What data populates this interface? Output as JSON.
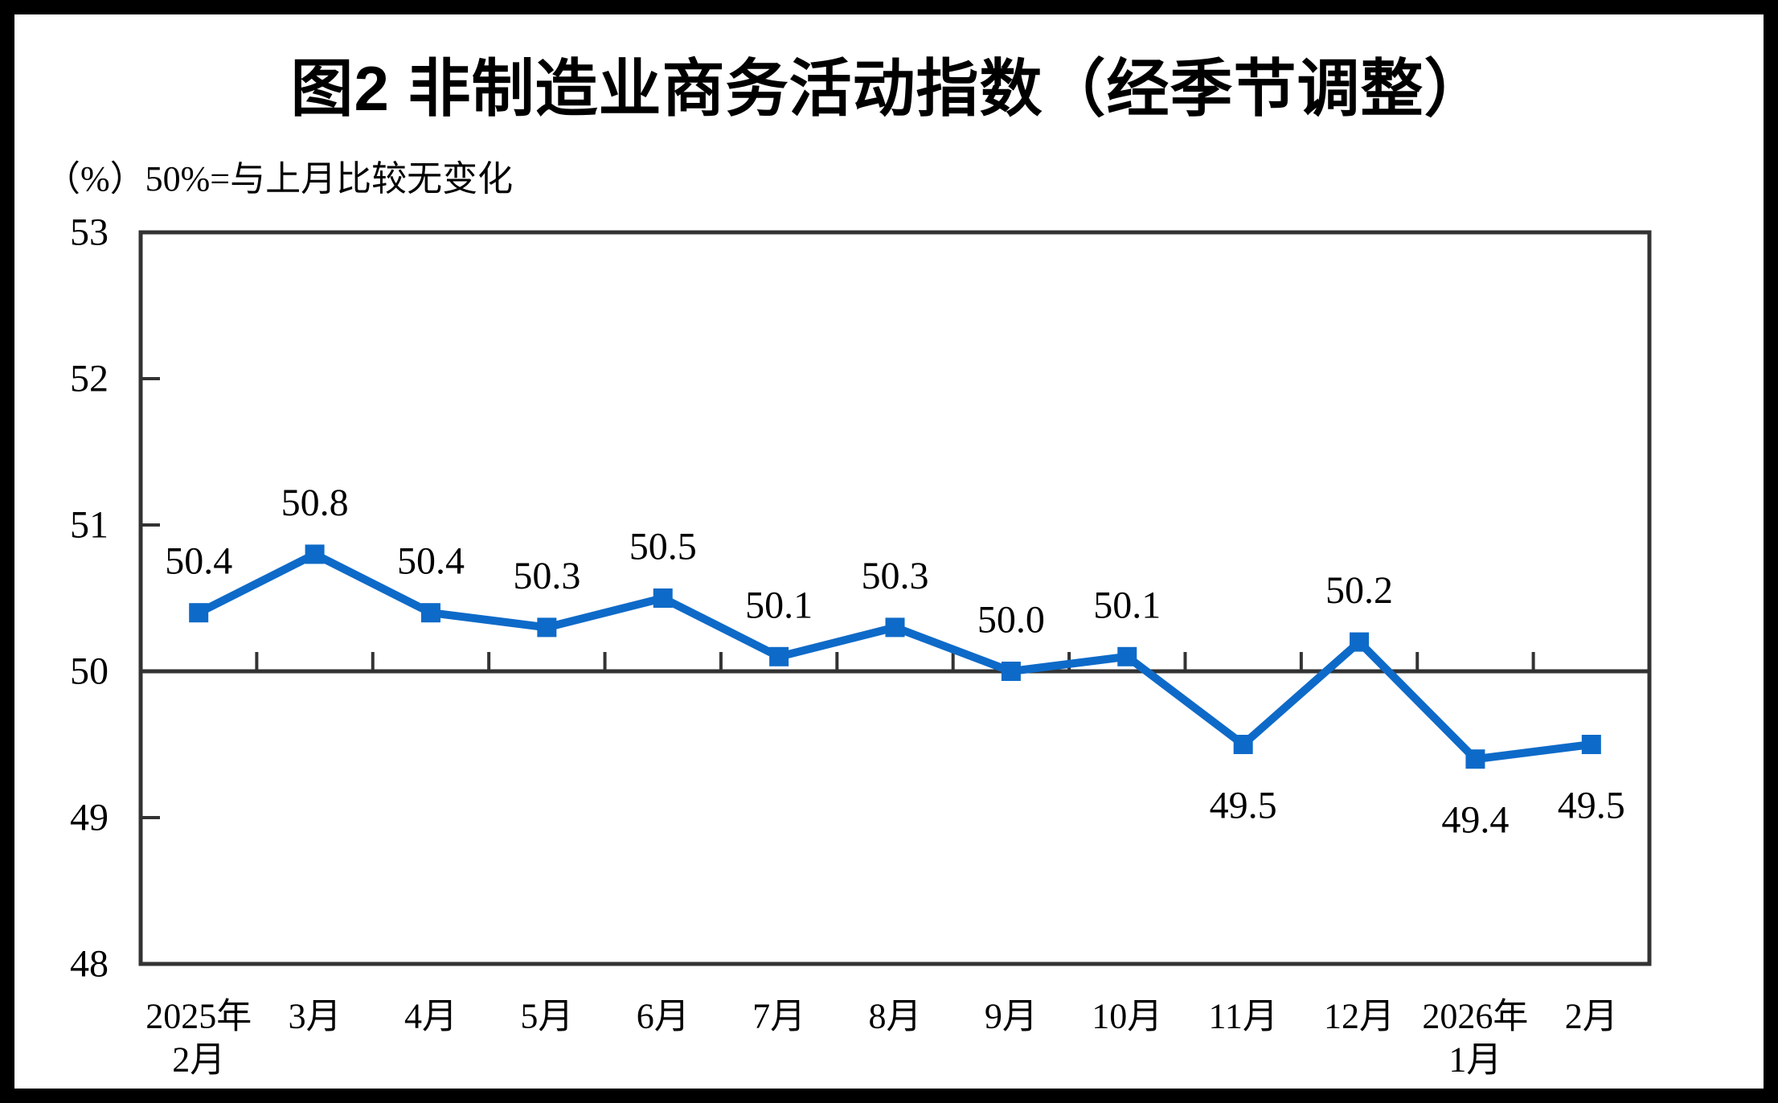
{
  "chart_data": {
    "type": "line",
    "title": "图2 非制造业商务活动指数（经季节调整）",
    "unit_note": "（%）50%=与上月比较无变化",
    "categories": [
      "2025年\n2月",
      "3月",
      "4月",
      "5月",
      "6月",
      "7月",
      "8月",
      "9月",
      "10月",
      "11月",
      "12月",
      "2026年\n1月",
      "2月"
    ],
    "values": [
      50.4,
      50.8,
      50.4,
      50.3,
      50.5,
      50.1,
      50.3,
      50.0,
      50.1,
      49.5,
      50.2,
      49.4,
      49.5
    ],
    "data_labels": [
      "50.4",
      "50.8",
      "50.4",
      "50.3",
      "50.5",
      "50.1",
      "50.3",
      "50.0",
      "50.1",
      "49.5",
      "50.2",
      "49.4",
      "49.5"
    ],
    "label_positions": [
      "above",
      "above",
      "above",
      "above",
      "above",
      "above",
      "above",
      "above",
      "above",
      "below",
      "above",
      "below",
      "below"
    ],
    "ylim": [
      48,
      53
    ],
    "yticks": [
      48,
      49,
      50,
      51,
      52,
      53
    ],
    "reference_line_value": 50,
    "grid": false,
    "legend": "none",
    "marker": "square",
    "colors": {
      "series": "#0E6AC8",
      "axis": "#333333",
      "text": "#000000",
      "frame": "#000000",
      "background": "#FFFFFF"
    }
  }
}
